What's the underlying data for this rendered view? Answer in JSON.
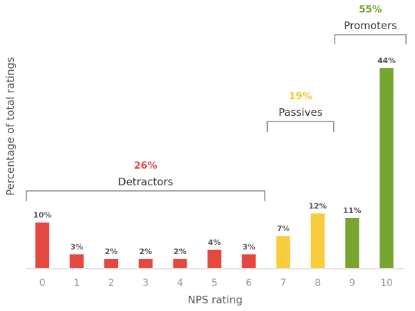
{
  "chart_data": {
    "type": "bar",
    "xlabel": "NPS rating",
    "ylabel": "Percentage of total ratings",
    "categories": [
      "0",
      "1",
      "2",
      "3",
      "4",
      "5",
      "6",
      "7",
      "8",
      "9",
      "10"
    ],
    "values": [
      10,
      3,
      2,
      2,
      2,
      4,
      3,
      7,
      12,
      11,
      44
    ],
    "value_labels": [
      "10%",
      "3%",
      "2%",
      "2%",
      "2%",
      "4%",
      "3%",
      "7%",
      "12%",
      "11%",
      "44%"
    ],
    "ylim": [
      0,
      44
    ],
    "grid": false,
    "groups": [
      {
        "name": "Detractors",
        "percent": "26%",
        "from": 0,
        "to": 6,
        "color": "#e5483f"
      },
      {
        "name": "Passives",
        "percent": "19%",
        "from": 7,
        "to": 8,
        "color": "#f7cd3e"
      },
      {
        "name": "Promoters",
        "percent": "55%",
        "from": 9,
        "to": 10,
        "color": "#78a52f"
      }
    ],
    "group_percent_colors": [
      "#e5483f",
      "#f2c935",
      "#78a52f"
    ],
    "baseline_color": "#d8d8d8"
  }
}
